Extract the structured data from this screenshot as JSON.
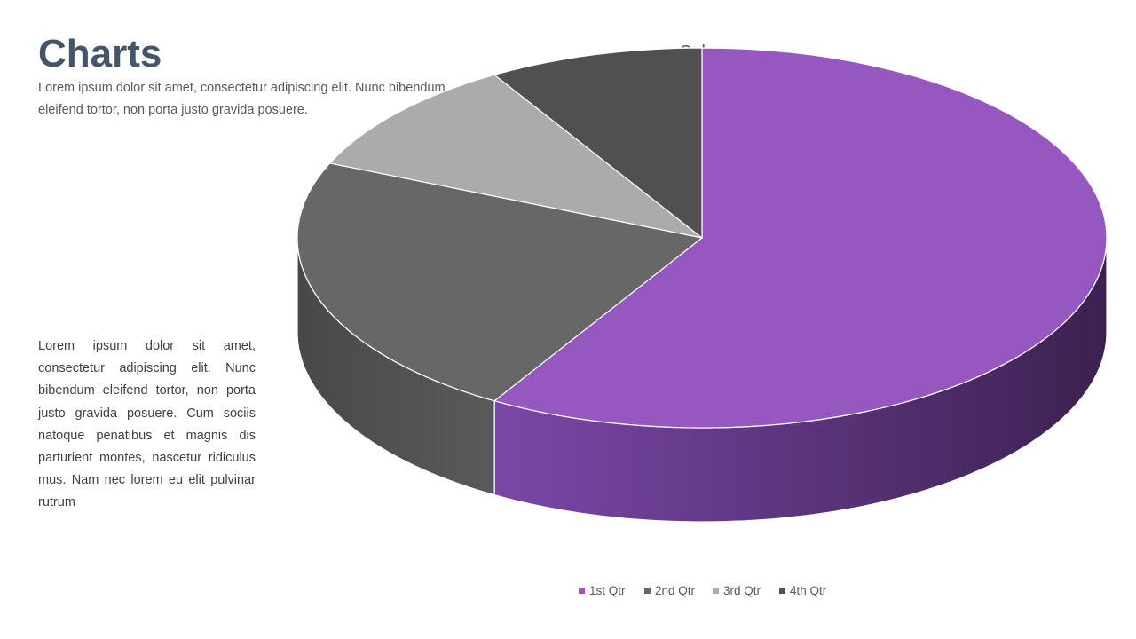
{
  "slide": {
    "title": "Charts",
    "intro": "Lorem ipsum dolor sit amet, consectetur adipiscing elit. Nunc bibendum eleifend tortor, non porta justo gravida posuere.",
    "body": "Lorem ipsum dolor sit amet, consectetur adipiscing elit. Nunc bibendum eleifend tortor, non porta justo gravida posuere. Cum sociis natoque penatibus et magnis dis parturient montes, nascetur ridiculus mus. Nam nec lorem eu elit pulvinar rutrum"
  },
  "chart_data": {
    "type": "pie",
    "style": "3d",
    "title": "Sales",
    "categories": [
      "1st Qtr",
      "2nd Qtr",
      "3rd Qtr",
      "4th Qtr"
    ],
    "values": [
      8.2,
      3.2,
      1.4,
      1.2
    ],
    "colors": [
      "#9657c0",
      "#676767",
      "#ababab",
      "#505050"
    ],
    "side_colors": [
      [
        "#7a48a8",
        "#3c2150"
      ],
      [
        "#5a5a5a",
        "#484848"
      ],
      [
        "#8a8a8a",
        "#777777"
      ],
      [
        "#454545",
        "#3a3a3a"
      ]
    ],
    "legend_position": "bottom"
  }
}
